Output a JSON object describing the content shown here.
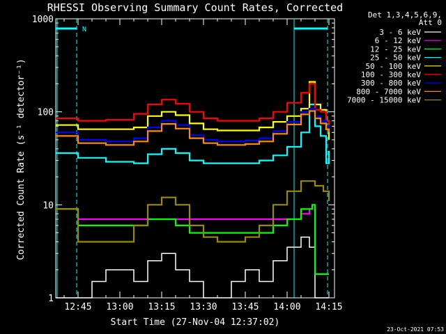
{
  "chart_data": {
    "type": "line",
    "title": "RHESSI Observing Summary Count Rates, Corrected",
    "xlabel": "Start Time (27-Nov-04 12:37:02)",
    "ylabel": "Corrected Count Rate (s⁻¹ detector⁻¹)",
    "x_ticks": [
      "12:45",
      "13:00",
      "13:15",
      "13:30",
      "13:45",
      "14:00",
      "14:15"
    ],
    "y_ticks": [
      "1",
      "10",
      "100",
      "1000"
    ],
    "y_scale": "log",
    "ylim": [
      1,
      1000
    ],
    "xlim": [
      "12:37",
      "14:17"
    ],
    "legend_header": [
      "Det 1,3,4,5,6,9,",
      "Att 0"
    ],
    "legend_position": "right",
    "flag_label": "N",
    "timestamp": "23-Oct-2021 07:53",
    "series": [
      {
        "name": "3 - 6 keV",
        "color": "#ffffff",
        "x": [
          "12:37",
          "12:50",
          "12:55",
          "13:05",
          "13:10",
          "13:15",
          "13:20",
          "13:25",
          "13:30",
          "13:35",
          "13:40",
          "13:45",
          "13:50",
          "13:55",
          "14:00",
          "14:05",
          "14:08",
          "14:10",
          "14:13",
          "14:15"
        ],
        "y": [
          1.0,
          1.5,
          2.0,
          1.5,
          2.5,
          3.0,
          2.0,
          1.5,
          1.0,
          1.0,
          1.5,
          2.0,
          1.5,
          2.5,
          3.5,
          4.5,
          3.5,
          1.0,
          1.0,
          1.0
        ]
      },
      {
        "name": "6 - 12 keV",
        "color": "#ff00ff",
        "x": [
          "12:37",
          "12:45",
          "12:55",
          "13:05",
          "13:10",
          "13:15",
          "13:20",
          "13:25",
          "13:30",
          "13:35",
          "13:40",
          "13:45",
          "13:50",
          "13:55",
          "14:00",
          "14:05",
          "14:08",
          "14:09"
        ],
        "y": [
          9,
          7,
          7,
          7,
          7,
          7,
          7,
          7,
          7,
          7,
          7,
          7,
          7,
          7,
          7,
          8,
          9,
          10
        ]
      },
      {
        "name": "12 - 25 keV",
        "color": "#00ff00",
        "x": [
          "12:37",
          "12:45",
          "12:55",
          "13:05",
          "13:10",
          "13:15",
          "13:20",
          "13:25",
          "13:30",
          "13:35",
          "13:40",
          "13:45",
          "13:50",
          "13:55",
          "14:00",
          "14:05",
          "14:08",
          "14:09",
          "14:10",
          "14:15"
        ],
        "y": [
          9,
          6,
          6,
          6,
          7,
          7,
          6,
          5,
          5,
          5,
          5,
          5,
          5,
          6,
          7,
          9,
          9,
          10,
          1.8,
          1.8
        ]
      },
      {
        "name": "25 - 50 keV",
        "color": "#00ffff",
        "x": [
          "12:37",
          "12:45",
          "12:55",
          "13:05",
          "13:10",
          "13:15",
          "13:20",
          "13:25",
          "13:30",
          "13:35",
          "13:40",
          "13:45",
          "13:50",
          "13:55",
          "14:00",
          "14:05",
          "14:08",
          "14:10",
          "14:12",
          "14:14",
          "14:15"
        ],
        "y": [
          36,
          32,
          29,
          28,
          35,
          40,
          36,
          30,
          28,
          28,
          28,
          28,
          30,
          34,
          42,
          60,
          120,
          70,
          55,
          28,
          38
        ]
      },
      {
        "name": "50 - 100 keV",
        "color": "#ffff00",
        "x": [
          "12:37",
          "12:45",
          "12:55",
          "13:05",
          "13:10",
          "13:15",
          "13:20",
          "13:25",
          "13:30",
          "13:35",
          "13:40",
          "13:45",
          "13:50",
          "13:55",
          "14:00",
          "14:05",
          "14:08",
          "14:10",
          "14:12",
          "14:14",
          "14:15"
        ],
        "y": [
          72,
          65,
          65,
          68,
          90,
          100,
          92,
          75,
          65,
          63,
          63,
          63,
          68,
          78,
          90,
          108,
          210,
          120,
          105,
          65,
          50
        ]
      },
      {
        "name": "100 - 300 keV",
        "color": "#ff0000",
        "x": [
          "12:37",
          "12:45",
          "12:55",
          "13:05",
          "13:10",
          "13:15",
          "13:20",
          "13:25",
          "13:30",
          "13:35",
          "13:40",
          "13:45",
          "13:50",
          "13:55",
          "14:00",
          "14:05",
          "14:08",
          "14:10",
          "14:12",
          "14:14",
          "14:15"
        ],
        "y": [
          85,
          80,
          82,
          95,
          120,
          135,
          122,
          100,
          85,
          80,
          80,
          80,
          85,
          100,
          125,
          160,
          200,
          105,
          100,
          80,
          72
        ]
      },
      {
        "name": "300 - 800 keV",
        "color": "#0000ff",
        "x": [
          "12:37",
          "12:45",
          "12:55",
          "13:05",
          "13:10",
          "13:15",
          "13:20",
          "13:25",
          "13:30",
          "13:35",
          "13:40",
          "13:45",
          "13:50",
          "13:55",
          "14:00",
          "14:05",
          "14:08",
          "14:10",
          "14:12",
          "14:14",
          "14:15"
        ],
        "y": [
          60,
          50,
          48,
          52,
          68,
          80,
          72,
          56,
          50,
          48,
          48,
          49,
          52,
          62,
          78,
          100,
          108,
          90,
          80,
          70,
          66
        ]
      },
      {
        "name": "800 - 7000 keV",
        "color": "#ff8c00",
        "x": [
          "12:37",
          "12:45",
          "12:55",
          "13:05",
          "13:10",
          "13:15",
          "13:20",
          "13:25",
          "13:30",
          "13:35",
          "13:40",
          "13:45",
          "13:50",
          "13:55",
          "14:00",
          "14:05",
          "14:08",
          "14:10",
          "14:12",
          "14:14",
          "14:15"
        ],
        "y": [
          55,
          46,
          44,
          48,
          62,
          74,
          66,
          52,
          46,
          44,
          44,
          45,
          48,
          58,
          73,
          94,
          102,
          85,
          75,
          65,
          60
        ]
      },
      {
        "name": "7000 - 15000 keV",
        "color": "#9a8a00",
        "x": [
          "12:37",
          "12:45",
          "12:55",
          "13:05",
          "13:10",
          "13:15",
          "13:20",
          "13:25",
          "13:30",
          "13:35",
          "13:40",
          "13:45",
          "13:50",
          "13:55",
          "14:00",
          "14:05",
          "14:08",
          "14:10",
          "14:13",
          "14:15"
        ],
        "y": [
          9,
          4,
          4,
          6,
          10,
          12,
          10,
          6,
          4.5,
          4,
          4,
          4.5,
          6,
          10,
          14,
          18,
          18,
          16,
          14,
          11
        ]
      }
    ]
  }
}
